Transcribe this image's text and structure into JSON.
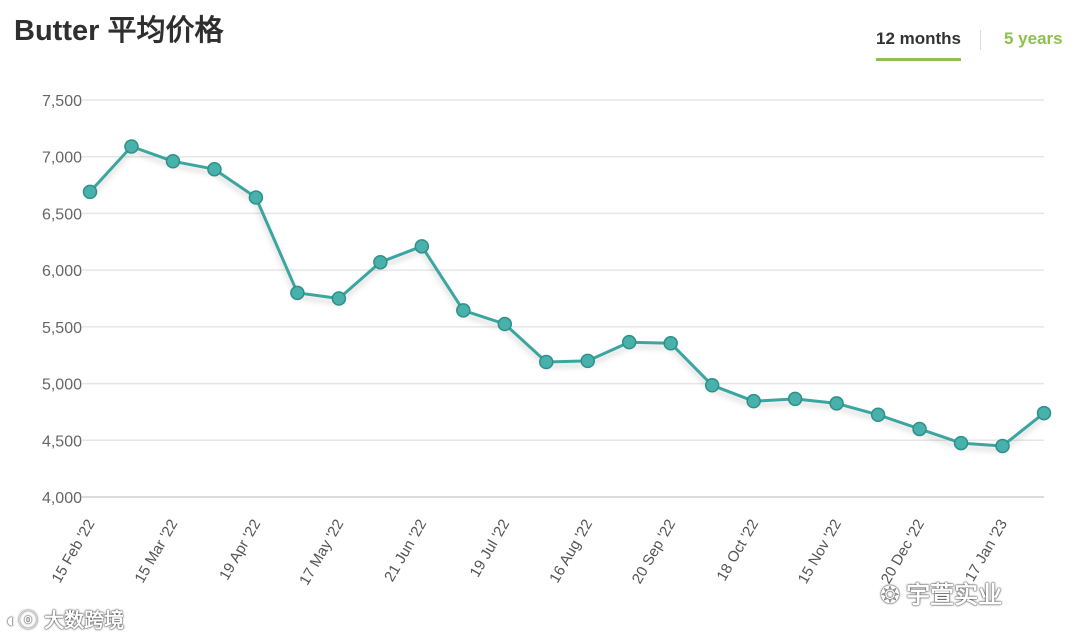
{
  "header": {
    "title": "Butter 平均价格",
    "tabs": [
      {
        "label": "12 months",
        "active": true
      },
      {
        "label": "5 years",
        "active": false
      }
    ],
    "accent_color": "#8dc14b"
  },
  "chart_data": {
    "type": "line",
    "title": "Butter 平均价格",
    "xlabel": "",
    "ylabel": "",
    "ylim": [
      4000,
      7500
    ],
    "yticks": [
      "4,000",
      "4,500",
      "5,000",
      "5,500",
      "6,000",
      "6,500",
      "7,000",
      "7,500"
    ],
    "xtick_labels": [
      "15 Feb '22",
      "15 Mar '22",
      "19 Apr '22",
      "17 May '22",
      "21 Jun '22",
      "19 Jul '22",
      "16 Aug '22",
      "20 Sep '22",
      "18 Oct '22",
      "15 Nov '22",
      "20 Dec '22",
      "17 Jan '23"
    ],
    "grid": true,
    "legend": "none",
    "series_color": "#3aa59f",
    "marker_color": "#48b1ab",
    "series": [
      {
        "values": [
          6690,
          7090,
          6960,
          6890,
          6640,
          5800,
          5750,
          6070,
          6210,
          5645,
          5525,
          5190,
          5200,
          5365,
          5355,
          4985,
          4845,
          4865,
          4825,
          4725,
          4600,
          4475,
          4450,
          4740
        ]
      }
    ]
  },
  "watermarks": {
    "left": "大数跨境",
    "right": "宇萱实业"
  }
}
